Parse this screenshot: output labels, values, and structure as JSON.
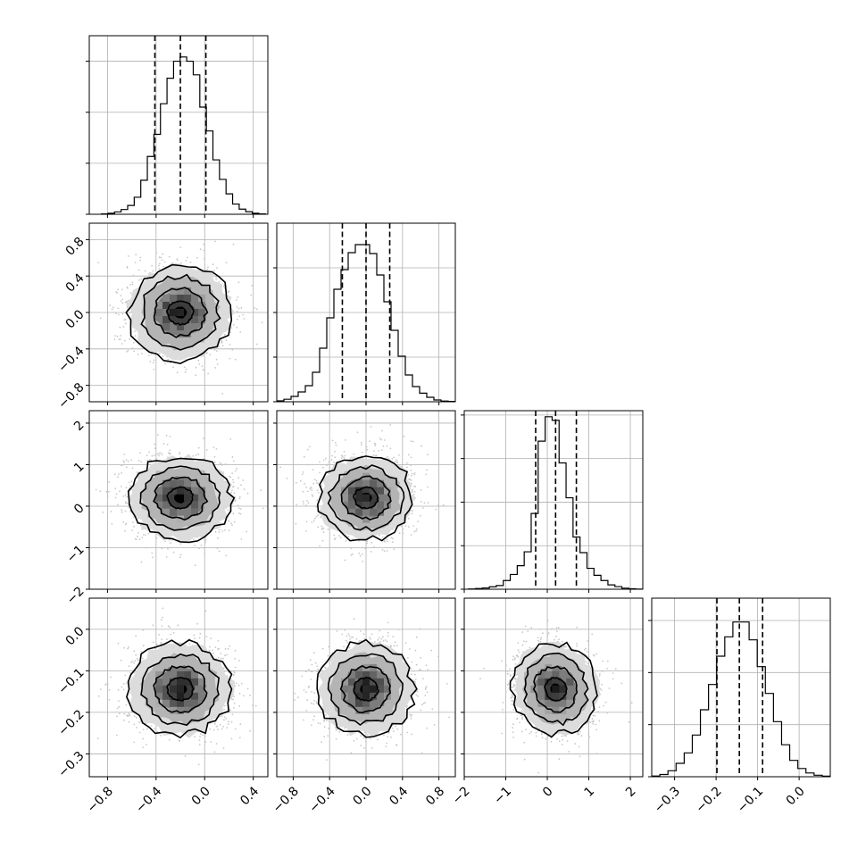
{
  "chart_data": {
    "type": "corner",
    "parameters": [
      {
        "range": [
          -0.95,
          0.52
        ],
        "ticks": [
          -0.8,
          -0.4,
          0.0,
          0.4
        ],
        "tick_labels": [
          "−0.8",
          "−0.4",
          "0.0",
          "0.4"
        ],
        "quantiles": [
          -0.41,
          -0.2,
          0.01
        ],
        "hist_bins": [
          -0.85,
          0.5
        ],
        "hist_counts": [
          2,
          6,
          14,
          28,
          52,
          100,
          200,
          340,
          470,
          650,
          800,
          900,
          925,
          900,
          820,
          630,
          490,
          320,
          205,
          120,
          60,
          30,
          15,
          6,
          2
        ],
        "hist_ylim": [
          0,
          1050
        ],
        "hist_yticks": [
          0,
          300,
          600,
          900
        ]
      },
      {
        "range": [
          -0.98,
          0.98
        ],
        "ticks": [
          -0.8,
          -0.4,
          0.0,
          0.4,
          0.8
        ],
        "tick_labels": [
          "−0.8",
          "−0.4",
          "0.0",
          "0.4",
          "0.8"
        ],
        "quantiles": [
          -0.26,
          0.0,
          0.26
        ],
        "hist_bins": [
          -0.98,
          0.98
        ],
        "hist_counts": [
          5,
          14,
          30,
          55,
          90,
          165,
          300,
          470,
          630,
          740,
          835,
          880,
          880,
          830,
          710,
          560,
          400,
          255,
          150,
          85,
          48,
          25,
          10,
          4,
          2
        ],
        "hist_ylim": [
          0,
          1000
        ],
        "hist_yticks": [
          0,
          250,
          500,
          750
        ]
      },
      {
        "range": [
          -2.0,
          2.3
        ],
        "ticks": [
          -2,
          -1,
          0,
          1,
          2
        ],
        "tick_labels": [
          "−2",
          "−1",
          "0",
          "1",
          "2"
        ],
        "quantiles": [
          -0.28,
          0.2,
          0.7
        ],
        "hist_bins": [
          -1.9,
          2.3
        ],
        "hist_counts": [
          3,
          8,
          14,
          28,
          42,
          100,
          170,
          270,
          430,
          870,
          1700,
          1980,
          1940,
          1450,
          1050,
          600,
          420,
          240,
          160,
          100,
          50,
          30,
          12,
          6,
          2
        ],
        "hist_ylim": [
          0,
          2050
        ],
        "hist_yticks": [
          0,
          500,
          1000,
          1500,
          2000
        ]
      },
      {
        "range": [
          -0.355,
          0.075
        ],
        "ticks": [
          -0.3,
          -0.2,
          -0.1,
          0.0
        ],
        "tick_labels": [
          "−0.3",
          "−0.2",
          "−0.1",
          "0.0"
        ],
        "y_ticks": [
          0.0,
          -0.1,
          -0.2,
          -0.3
        ],
        "y_tick_labels": [
          "0.0",
          "−0.1",
          "−0.2",
          "−0.3"
        ],
        "quantiles": [
          -0.198,
          -0.144,
          -0.088
        ],
        "hist_bins": [
          -0.355,
          0.075
        ],
        "hist_counts": [
          5,
          15,
          40,
          90,
          160,
          280,
          450,
          620,
          810,
          940,
          1040,
          1040,
          920,
          740,
          560,
          370,
          215,
          110,
          55,
          25,
          10,
          4
        ],
        "hist_ylim": [
          0,
          1200
        ],
        "hist_yticks": [
          0,
          350,
          700,
          1050
        ]
      }
    ],
    "pairs": [
      {
        "col": 0,
        "row": 1,
        "center": [
          -0.2,
          0.0
        ],
        "sigma": [
          0.21,
          0.26
        ],
        "rot": 0
      },
      {
        "col": 0,
        "row": 2,
        "center": [
          -0.2,
          0.2
        ],
        "sigma": [
          0.21,
          0.5
        ],
        "rot": 0
      },
      {
        "col": 1,
        "row": 2,
        "center": [
          0.0,
          0.2
        ],
        "sigma": [
          0.26,
          0.5
        ],
        "rot": 0
      },
      {
        "col": 0,
        "row": 3,
        "center": [
          -0.2,
          -0.144
        ],
        "sigma": [
          0.21,
          0.055
        ],
        "rot": 0
      },
      {
        "col": 1,
        "row": 3,
        "center": [
          0.0,
          -0.144
        ],
        "sigma": [
          0.26,
          0.055
        ],
        "rot": 0
      },
      {
        "col": 2,
        "row": 3,
        "center": [
          0.2,
          -0.144
        ],
        "sigma": [
          0.5,
          0.055
        ],
        "rot": -0.35
      }
    ],
    "contour_levels": [
      0.5,
      1.0,
      1.5,
      2.0
    ]
  }
}
